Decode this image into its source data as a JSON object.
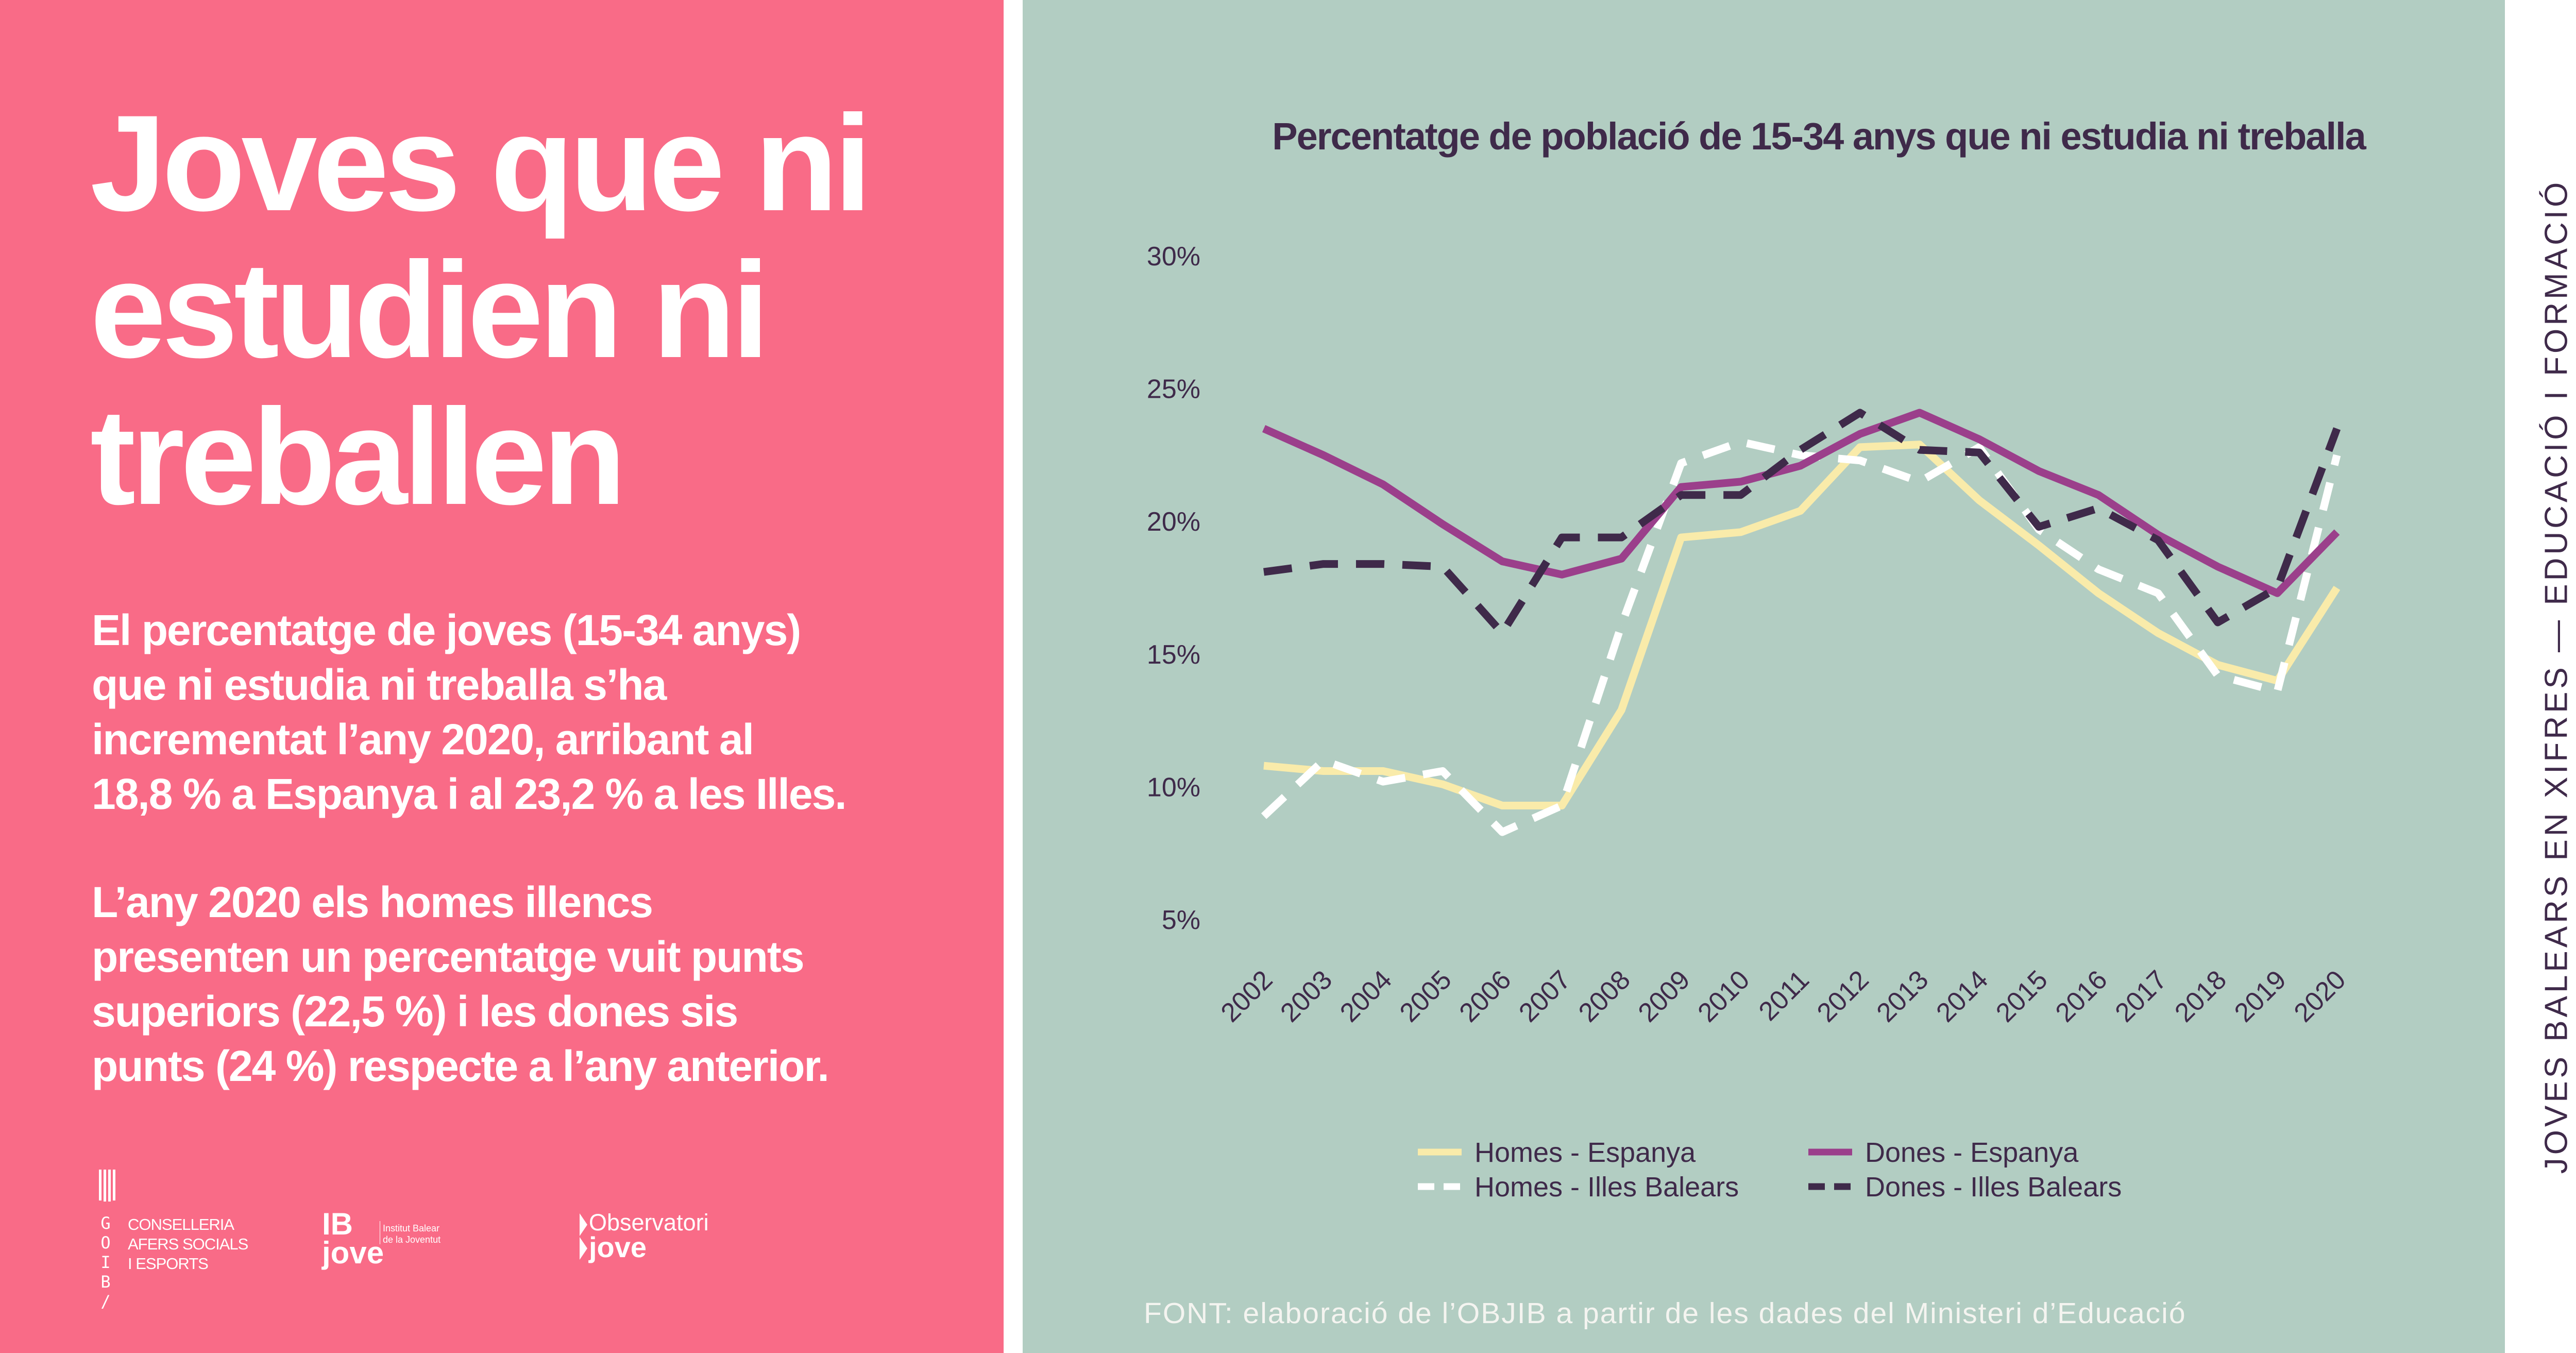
{
  "headline": {
    "lines": [
      "Joves que ni",
      "estudien ni",
      "treballen"
    ]
  },
  "paragraph1": {
    "lines": [
      "El percentatge de joves (15-34 anys)",
      "que ni estudia ni treballa s’ha",
      "incrementat l’any 2020, arribant al",
      "18,8 % a Espanya i al 23,2 % a les Illes."
    ]
  },
  "paragraph2": {
    "lines": [
      "L’any 2020 els homes illencs",
      "presenten un percentatge vuit punts",
      "superiors (22,5 %) i les dones sis",
      "punts (24 %) respecte a l’any anterior."
    ]
  },
  "logos": {
    "goib": {
      "letters": [
        "G",
        "O",
        "I",
        "B",
        "/"
      ],
      "lines": [
        "CONSELLERIA",
        "AFERS SOCIALS",
        "I ESPORTS"
      ]
    },
    "ibjove": {
      "mark": "IB jove",
      "lines": [
        "Institut Balear",
        "de la Joventut"
      ]
    },
    "observatori": {
      "lines": [
        "Observatori",
        "jove"
      ]
    }
  },
  "side_label": "JOVES BALEARS EN XIFRES — EDUCACIÓ I FORMACIÓ",
  "source": "FONT: elaboració de l’OBJIB a partir de les dades del Ministeri d’Educació",
  "colors": {
    "left_bg": "#F96B87",
    "chart_bg": "#B2CDC2",
    "text_dark": "#3F2A4A"
  },
  "chart_data": {
    "type": "line",
    "title": "Percentatge de població de 15-34 anys que ni estudia ni treballa",
    "xlabel": "",
    "ylabel": "",
    "categories": [
      "2002",
      "2003",
      "2004",
      "2005",
      "2006",
      "2007",
      "2008",
      "2009",
      "2010",
      "2011",
      "2012",
      "2013",
      "2014",
      "2015",
      "2016",
      "2017",
      "2018",
      "2019",
      "2020"
    ],
    "yticks": [
      "5%",
      "10%",
      "15%",
      "20%",
      "25%",
      "30%"
    ],
    "ytick_values": [
      5,
      10,
      15,
      20,
      25,
      30
    ],
    "ylim": [
      5,
      30
    ],
    "grid": false,
    "legend_position": "bottom",
    "series": [
      {
        "name": "Homes - Espanya",
        "color": "#F9EBAA",
        "dash": "solid",
        "values": [
          10.8,
          10.6,
          10.6,
          10.1,
          9.3,
          9.3,
          12.9,
          19.4,
          19.6,
          20.4,
          22.8,
          22.9,
          20.8,
          19.1,
          17.3,
          15.8,
          14.6,
          14.0,
          17.5
        ]
      },
      {
        "name": "Homes - Illes Balears",
        "color": "#FFFFFF",
        "dash": "dashed",
        "values": [
          8.9,
          11.0,
          10.2,
          10.6,
          8.3,
          9.3,
          16.1,
          22.2,
          23.0,
          22.5,
          22.3,
          21.5,
          22.8,
          19.7,
          18.2,
          17.3,
          14.2,
          13.6,
          22.5
        ]
      },
      {
        "name": "Dones - Espanya",
        "color": "#9B3F8B",
        "dash": "solid",
        "values": [
          23.5,
          22.5,
          21.4,
          19.9,
          18.5,
          18.0,
          18.6,
          21.3,
          21.5,
          22.1,
          23.3,
          24.1,
          23.1,
          21.9,
          21.0,
          19.5,
          18.3,
          17.3,
          19.6
        ]
      },
      {
        "name": "Dones - Illes Balears",
        "color": "#3F2A4A",
        "dash": "dashed",
        "values": [
          18.1,
          18.4,
          18.4,
          18.3,
          15.8,
          19.4,
          19.4,
          21.0,
          21.0,
          22.7,
          24.1,
          22.7,
          22.6,
          19.8,
          20.5,
          19.3,
          16.2,
          17.5,
          23.5
        ]
      }
    ]
  }
}
